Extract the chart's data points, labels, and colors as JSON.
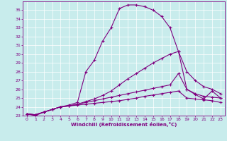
{
  "xlabel": "Windchill (Refroidissement éolien,°C)",
  "background_color": "#c8ecec",
  "line_color": "#800080",
  "grid_color": "#ffffff",
  "xlim": [
    -0.5,
    23.5
  ],
  "ylim": [
    23,
    36
  ],
  "yticks": [
    23,
    24,
    25,
    26,
    27,
    28,
    29,
    30,
    31,
    32,
    33,
    34,
    35
  ],
  "xticks": [
    0,
    1,
    2,
    3,
    4,
    5,
    6,
    7,
    8,
    9,
    10,
    11,
    12,
    13,
    14,
    15,
    16,
    17,
    18,
    19,
    20,
    21,
    22,
    23
  ],
  "line1": [
    23.2,
    23.0,
    23.4,
    23.7,
    24.0,
    24.2,
    24.5,
    28.0,
    29.3,
    31.5,
    33.0,
    35.2,
    35.6,
    35.6,
    35.4,
    35.0,
    34.3,
    33.0,
    30.3,
    26.0,
    25.4,
    24.9,
    25.8,
    25.0
  ],
  "line2": [
    23.2,
    23.1,
    23.4,
    23.7,
    24.0,
    24.1,
    24.3,
    24.6,
    24.9,
    25.3,
    25.8,
    26.5,
    27.2,
    27.8,
    28.4,
    29.0,
    29.5,
    30.0,
    30.3,
    28.0,
    27.0,
    26.3,
    26.0,
    25.5
  ],
  "line3": [
    23.2,
    23.1,
    23.4,
    23.7,
    24.0,
    24.1,
    24.3,
    24.5,
    24.7,
    24.9,
    25.1,
    25.3,
    25.5,
    25.7,
    25.9,
    26.1,
    26.3,
    26.5,
    27.8,
    26.0,
    25.5,
    25.2,
    25.1,
    25.0
  ],
  "line4": [
    23.2,
    23.1,
    23.4,
    23.7,
    24.0,
    24.1,
    24.2,
    24.3,
    24.4,
    24.5,
    24.6,
    24.7,
    24.85,
    25.0,
    25.2,
    25.35,
    25.5,
    25.65,
    25.8,
    25.0,
    24.9,
    24.8,
    24.7,
    24.5
  ]
}
